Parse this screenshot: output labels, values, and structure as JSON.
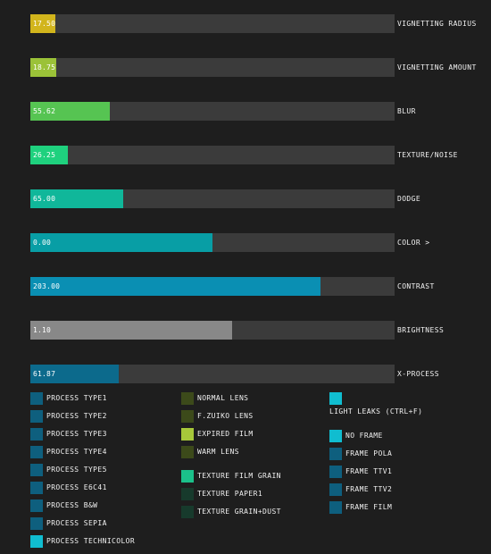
{
  "sliders": [
    {
      "value_text": "17.50",
      "label": "VIGNETTING RADIUS",
      "fraction": 0.068,
      "color": "#d2b51c"
    },
    {
      "value_text": "18.75",
      "label": "VIGNETTING AMOUNT",
      "fraction": 0.072,
      "color": "#9bc238"
    },
    {
      "value_text": "55.62",
      "label": "BLUR",
      "fraction": 0.219,
      "color": "#56c452"
    },
    {
      "value_text": "26.25",
      "label": "TEXTURE/NOISE",
      "fraction": 0.103,
      "color": "#1fd17e"
    },
    {
      "value_text": "65.00",
      "label": "DODGE",
      "fraction": 0.255,
      "color": "#10b79a"
    },
    {
      "value_text": "0.00",
      "label": "COLOR >",
      "fraction": 0.5,
      "color": "#089ea5"
    },
    {
      "value_text": "203.00",
      "label": "CONTRAST",
      "fraction": 0.797,
      "color": "#0a8fb3"
    },
    {
      "value_text": "1.10",
      "label": "BRIGHTNESS",
      "fraction": 0.554,
      "color": "#888888"
    },
    {
      "value_text": "61.87",
      "label": "X-PROCESS",
      "fraction": 0.243,
      "color": "#0c6a8c"
    }
  ],
  "process_types": [
    {
      "label": "PROCESS TYPE1",
      "color": "#0e5f7e"
    },
    {
      "label": "PROCESS TYPE2",
      "color": "#0e5f7e"
    },
    {
      "label": "PROCESS TYPE3",
      "color": "#0e5f7e"
    },
    {
      "label": "PROCESS TYPE4",
      "color": "#0e5f7e"
    },
    {
      "label": "PROCESS TYPE5",
      "color": "#0e5f7e"
    },
    {
      "label": "PROCESS E6C41",
      "color": "#0e5f7e"
    },
    {
      "label": "PROCESS B&W",
      "color": "#0e5f7e"
    },
    {
      "label": "PROCESS SEPIA",
      "color": "#0e5f7e"
    },
    {
      "label": "PROCESS TECHNICOLOR",
      "color": "#10bdd0"
    }
  ],
  "lenses": [
    {
      "label": "NORMAL LENS",
      "color": "#3c4a1a"
    },
    {
      "label": "F.ZUIKO LENS",
      "color": "#3c4a1a"
    },
    {
      "label": "EXPIRED FILM",
      "color": "#a7c83a"
    },
    {
      "label": "WARM LENS",
      "color": "#3c4a1a"
    }
  ],
  "textures": [
    {
      "label": "TEXTURE FILM GRAIN",
      "color": "#1bc08a"
    },
    {
      "label": "TEXTURE PAPER1",
      "color": "#173a2c"
    },
    {
      "label": "TEXTURE GRAIN+DUST",
      "color": "#173a2c"
    }
  ],
  "light_leaks": {
    "label": "LIGHT LEAKS (CTRL+F)",
    "color": "#10bdd0"
  },
  "frames": [
    {
      "label": "NO FRAME",
      "color": "#10bdd0"
    },
    {
      "label": "FRAME POLA",
      "color": "#0e5f7e"
    },
    {
      "label": "FRAME TTV1",
      "color": "#0e5f7e"
    },
    {
      "label": "FRAME TTV2",
      "color": "#0e5f7e"
    },
    {
      "label": "FRAME FILM",
      "color": "#0e5f7e"
    }
  ]
}
